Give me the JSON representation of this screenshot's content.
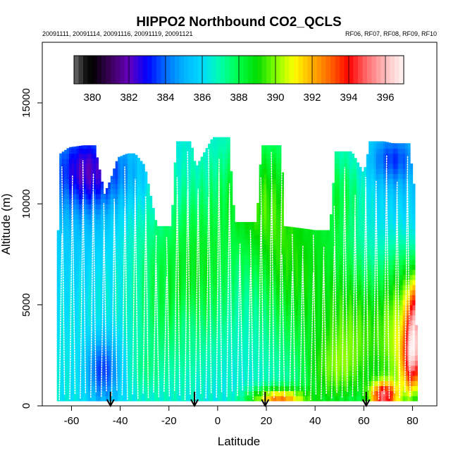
{
  "chart_data": {
    "type": "heatmap",
    "title": "HIPPO2 Northbound CO2_QCLS",
    "subtitle_left": "20091111, 20091114, 20091116, 20091119, 20091121",
    "subtitle_right": "RF06, RF07, RF08, RF09, RF10",
    "xlabel": "Latitude",
    "ylabel": "Altitude (m)",
    "xlim": [
      -72,
      90
    ],
    "ylim": [
      0,
      18000
    ],
    "x_ticks": [
      -60,
      -40,
      -20,
      0,
      20,
      40,
      60,
      80
    ],
    "y_ticks": [
      0,
      5000,
      10000,
      15000
    ],
    "y_tick_labels": [
      "0",
      "5000",
      "10000",
      "15000"
    ],
    "colorbar": {
      "ticks": [
        380,
        382,
        384,
        386,
        388,
        390,
        392,
        394,
        396
      ],
      "range": [
        379,
        397
      ],
      "position": "top-inside"
    },
    "profile_ceiling": [
      {
        "lat": -64.5,
        "alt": 12500
      },
      {
        "lat": -61,
        "alt": 12800
      },
      {
        "lat": -55,
        "alt": 12900
      },
      {
        "lat": -50.5,
        "alt": 12900
      },
      {
        "lat": -46.5,
        "alt": 10500
      },
      {
        "lat": -44,
        "alt": 11200
      },
      {
        "lat": -41,
        "alt": 12300
      },
      {
        "lat": -37,
        "alt": 12500
      },
      {
        "lat": -34,
        "alt": 12500
      },
      {
        "lat": -30,
        "alt": 11900
      },
      {
        "lat": -25,
        "alt": 8900
      },
      {
        "lat": -19,
        "alt": 8900
      },
      {
        "lat": -17,
        "alt": 13100
      },
      {
        "lat": -11,
        "alt": 13100
      },
      {
        "lat": -9,
        "alt": 11800
      },
      {
        "lat": -2,
        "alt": 13300
      },
      {
        "lat": 4.5,
        "alt": 13300
      },
      {
        "lat": 7,
        "alt": 9100
      },
      {
        "lat": 16,
        "alt": 9100
      },
      {
        "lat": 18,
        "alt": 12900
      },
      {
        "lat": 26,
        "alt": 12900
      },
      {
        "lat": 27.5,
        "alt": 8900
      },
      {
        "lat": 34,
        "alt": 8800
      },
      {
        "lat": 40,
        "alt": 8700
      },
      {
        "lat": 46,
        "alt": 8700
      },
      {
        "lat": 48.5,
        "alt": 12600
      },
      {
        "lat": 55,
        "alt": 12600
      },
      {
        "lat": 60,
        "alt": 11500
      },
      {
        "lat": 62.5,
        "alt": 13100
      },
      {
        "lat": 68,
        "alt": 13100
      },
      {
        "lat": 72,
        "alt": 13000
      },
      {
        "lat": 78.5,
        "alt": 13000
      },
      {
        "lat": 80.5,
        "alt": 11000
      },
      {
        "lat": 81,
        "alt": 7000
      },
      {
        "lat": 82,
        "alt": 1000
      }
    ],
    "left_edge": {
      "lat": -66,
      "alt_top": 8700
    },
    "co2_features": [
      {
        "lat": -55,
        "alt": 11800,
        "sx": 9,
        "sy": 1400,
        "dv": -3.2
      },
      {
        "lat": -40,
        "alt": 11600,
        "sx": 10,
        "sy": 1200,
        "dv": -1.2
      },
      {
        "lat": -57,
        "alt": 9500,
        "sx": 12,
        "sy": 2500,
        "dv": -0.9
      },
      {
        "lat": -47,
        "alt": 1800,
        "sx": 5,
        "sy": 1200,
        "dv": -2.8
      },
      {
        "lat": 72,
        "alt": 12300,
        "sx": 7,
        "sy": 900,
        "dv": -2.5
      },
      {
        "lat": 72,
        "alt": 10000,
        "sx": 11,
        "sy": 1800,
        "dv": -0.9
      },
      {
        "lat": -22,
        "alt": 6000,
        "sx": 10,
        "sy": 3200,
        "dv": 1.6
      },
      {
        "lat": -5,
        "alt": 7000,
        "sx": 9,
        "sy": 2700,
        "dv": 1.8
      },
      {
        "lat": 10,
        "alt": 10500,
        "sx": 8,
        "sy": 1800,
        "dv": 1.5
      },
      {
        "lat": 22,
        "alt": 9500,
        "sx": 9,
        "sy": 3200,
        "dv": 2.0
      },
      {
        "lat": 38,
        "alt": 6500,
        "sx": 13,
        "sy": 3700,
        "dv": 2.2
      },
      {
        "lat": 52,
        "alt": 10500,
        "sx": 7,
        "sy": 1400,
        "dv": 1.2
      },
      {
        "lat": 58,
        "alt": 3500,
        "sx": 10,
        "sy": 2300,
        "dv": 2.6
      },
      {
        "lat": 75,
        "alt": 3500,
        "sx": 6,
        "sy": 3000,
        "dv": 3.4
      },
      {
        "lat": 81,
        "alt": 4300,
        "sx": 2.5,
        "sy": 1500,
        "dv": 6.0
      },
      {
        "lat": 80,
        "alt": 2200,
        "sx": 3,
        "sy": 1200,
        "dv": 5.5
      },
      {
        "lat": 68,
        "alt": 500,
        "sx": 4,
        "sy": 500,
        "dv": 7.0
      },
      {
        "lat": 25,
        "alt": 300,
        "sx": 8,
        "sy": 400,
        "dv": 6.0
      },
      {
        "lat": -30,
        "alt": 1800,
        "sx": 4,
        "sy": 800,
        "dv": 0.6
      },
      {
        "lat": -13,
        "alt": 4200,
        "sx": 3,
        "sy": 700,
        "dv": -0.4
      },
      {
        "lat": 47,
        "alt": 1500,
        "sx": 8,
        "sy": 1300,
        "dv": 1.8
      }
    ],
    "flight_segments": [
      {
        "lat": -44,
        "label": "arrow-down"
      },
      {
        "lat": -9.5,
        "label": "arrow-down"
      },
      {
        "lat": 19.5,
        "label": "arrow-down"
      },
      {
        "lat": 61,
        "label": "arrow-down"
      }
    ],
    "colors": {
      "background": "#ffffff",
      "frame": "#000000",
      "profile_line": "#ffffff"
    }
  }
}
